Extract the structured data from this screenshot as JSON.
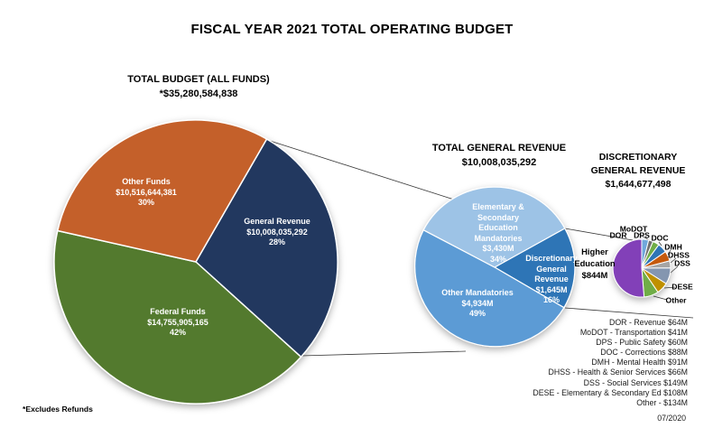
{
  "page": {
    "title": "FISCAL YEAR 2021 TOTAL OPERATING BUDGET",
    "footnote": "*Excludes Refunds",
    "date": "07/2020"
  },
  "chart_data": [
    {
      "type": "pie",
      "title": "TOTAL BUDGET (ALL FUNDS)",
      "subtitle": "*$35,280,584,838",
      "total": 35280584838,
      "slices": [
        {
          "label": "General Revenue",
          "value": 10008035292,
          "value_text": "$10,008,035,292",
          "pct_text": "28%",
          "color": "#20395E"
        },
        {
          "label": "Federal Funds",
          "value": 14755905165,
          "value_text": "$14,755,905,165",
          "pct_text": "42%",
          "color": "#537A2E"
        },
        {
          "label": "Other Funds",
          "value": 10516644381,
          "value_text": "$10,516,644,381",
          "pct_text": "30%",
          "color": "#C4612C"
        }
      ]
    },
    {
      "type": "pie",
      "title": "TOTAL GENERAL REVENUE",
      "subtitle": "$10,008,035,292",
      "units": "millions USD",
      "slices": [
        {
          "label": "Discretionary General Revenue",
          "value": 1645,
          "value_text": "$1,645M",
          "pct_text": "16%",
          "color": "#2E75B6"
        },
        {
          "label": "Other Mandatories",
          "value": 4934,
          "value_text": "$4,934M",
          "pct_text": "49%",
          "color": "#5B9BD5"
        },
        {
          "label": "Elementary & Secondary Education Mandatories",
          "value": 3430,
          "value_text": "$3,430M",
          "pct_text": "34%",
          "color": "#9DC3E6"
        }
      ]
    },
    {
      "type": "pie",
      "title": "DISCRETIONARY GENERAL REVENUE",
      "subtitle": "$1,644,677,498",
      "units": "millions USD",
      "slices": [
        {
          "label": "DOR",
          "value": 64,
          "color": "#6FA8DC"
        },
        {
          "label": "MoDOT",
          "value": 41,
          "color": "#6E6E6E"
        },
        {
          "label": "DPS",
          "value": 60,
          "color": "#70AD47"
        },
        {
          "label": "DOC",
          "value": 88,
          "color": "#2E75B6"
        },
        {
          "label": "DMH",
          "value": 91,
          "color": "#C55A11"
        },
        {
          "label": "DHSS",
          "value": 66,
          "color": "#A5A5A5"
        },
        {
          "label": "DSS",
          "value": 149,
          "color": "#8496B0"
        },
        {
          "label": "DESE",
          "value": 108,
          "color": "#BF9000"
        },
        {
          "label": "Other",
          "value": 134,
          "color": "#70AD47"
        },
        {
          "label": "Higher Education",
          "value": 844,
          "value_text": "$844M",
          "color": "#8240B8"
        }
      ]
    }
  ],
  "legend": {
    "items": [
      "DOR - Revenue $64M",
      "MoDOT - Transportation $41M",
      "DPS - Public Safety $60M",
      "DOC - Corrections $88M",
      "DMH - Mental Health $91M",
      "DHSS - Health & Senior Services $66M",
      "DSS - Social Services $149M",
      "DESE - Elementary & Secondary Ed $108M",
      "Other - $134M"
    ]
  }
}
